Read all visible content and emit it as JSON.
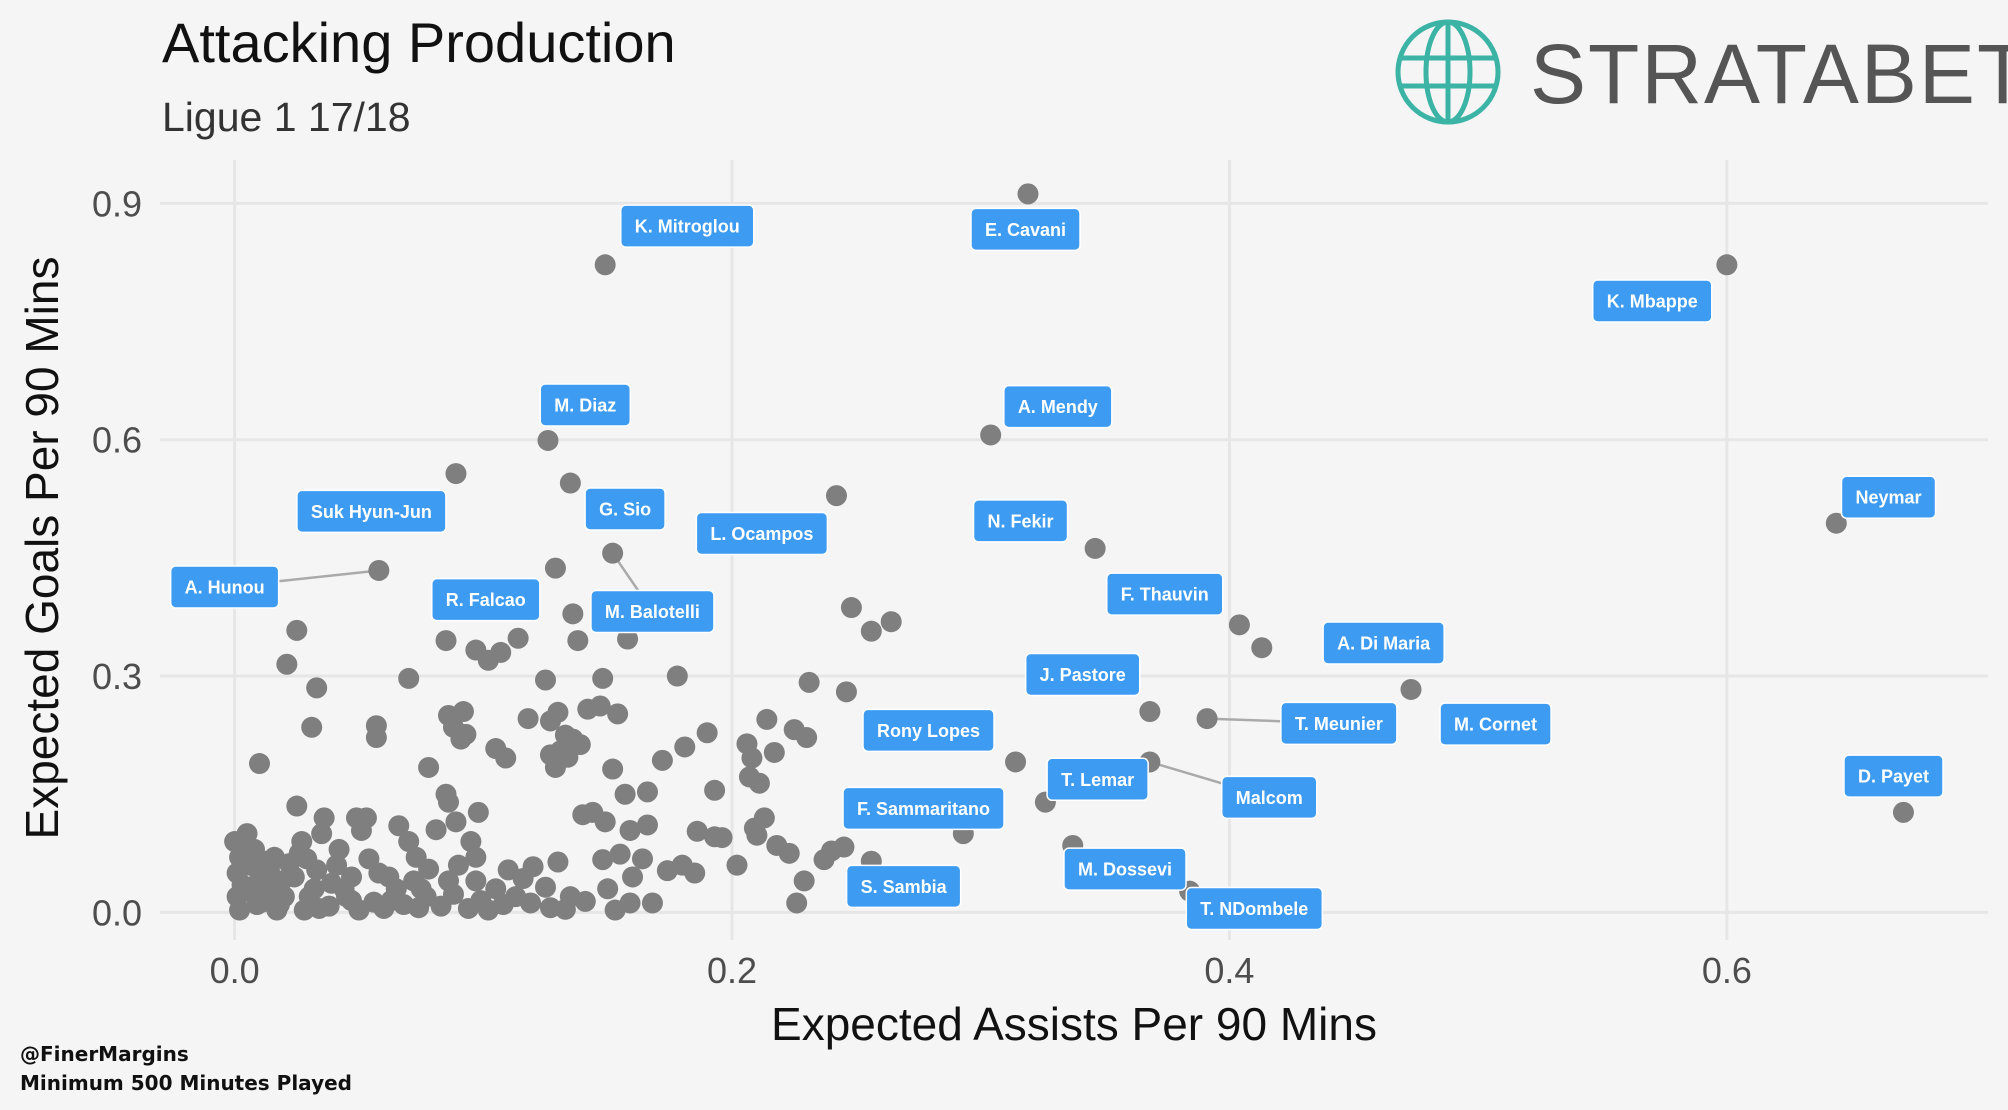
{
  "title": "Attacking Production",
  "subtitle": "Ligue 1 17/18",
  "logo": {
    "text": "STRATABET",
    "icon": "globe-icon",
    "color": "#3bb3a5"
  },
  "credit": {
    "handle": "@FinerMargins",
    "note": "Minimum 500 Minutes Played"
  },
  "colors": {
    "point": "#7f7f7f",
    "label_bg": "#3d9bf2",
    "label_text": "#ffffff",
    "grid": "#e6e6e6",
    "background": "#f5f5f5"
  },
  "chart_data": {
    "type": "scatter",
    "title": "Attacking Production",
    "subtitle": "Ligue 1 17/18",
    "xlabel": "Expected Assists Per 90 Mins",
    "ylabel": "Expected Goals Per 90 Mins",
    "xlim": [
      -0.03,
      0.705
    ],
    "ylim": [
      -0.035,
      0.955
    ],
    "xticks": [
      0.0,
      0.2,
      0.4,
      0.6
    ],
    "xtick_labels": [
      "0.0",
      "0.2",
      "0.4",
      "0.6"
    ],
    "yticks": [
      0.0,
      0.3,
      0.6,
      0.9
    ],
    "ytick_labels": [
      "0.0",
      "0.3",
      "0.6",
      "0.9"
    ],
    "grid": true,
    "labeled_points": [
      {
        "name": "E. Cavani",
        "x": 0.319,
        "y": 0.912,
        "lx": 0.318,
        "ly": 0.867
      },
      {
        "name": "K. Mitroglou",
        "x": 0.149,
        "y": 0.822,
        "lx": 0.182,
        "ly": 0.871
      },
      {
        "name": "K. Mbappe",
        "x": 0.6,
        "y": 0.822,
        "lx": 0.57,
        "ly": 0.776
      },
      {
        "name": "A. Mendy",
        "x": 0.304,
        "y": 0.606,
        "lx": 0.331,
        "ly": 0.642
      },
      {
        "name": "M. Diaz",
        "x": 0.126,
        "y": 0.599,
        "lx": 0.141,
        "ly": 0.644
      },
      {
        "name": "Neymar",
        "x": 0.644,
        "y": 0.494,
        "lx": 0.665,
        "ly": 0.527
      },
      {
        "name": "A. Hunou",
        "x": 0.058,
        "y": 0.434,
        "lx": -0.004,
        "ly": 0.413,
        "leader": true
      },
      {
        "name": "M. Balotelli",
        "x": 0.152,
        "y": 0.456,
        "lx": 0.168,
        "ly": 0.382,
        "leader": true
      },
      {
        "name": "A. Di Maria",
        "x": 0.413,
        "y": 0.336,
        "lx": 0.462,
        "ly": 0.342
      },
      {
        "name": "T. Meunier",
        "x": 0.391,
        "y": 0.246,
        "lx": 0.444,
        "ly": 0.24,
        "leader": true
      },
      {
        "name": "Malcom",
        "x": 0.368,
        "y": 0.191,
        "lx": 0.416,
        "ly": 0.146,
        "leader": true
      },
      {
        "name": "D. Payet",
        "x": 0.671,
        "y": 0.127,
        "lx": 0.667,
        "ly": 0.173
      },
      {
        "name": "T. NDombele",
        "x": 0.384,
        "y": 0.027,
        "lx": 0.41,
        "ly": 0.005
      },
      {
        "name": "Suk Hyun-Jun",
        "x": 0.09,
        "y": 0.557,
        "lx": 0.055,
        "ly": 0.509,
        "no_point": true
      },
      {
        "name": "G. Sio",
        "x": 0.135,
        "y": 0.545,
        "lx": 0.157,
        "ly": 0.512,
        "no_point": true
      },
      {
        "name": "L. Ocampos",
        "x": 0.242,
        "y": 0.529,
        "lx": 0.212,
        "ly": 0.481,
        "no_point": true
      },
      {
        "name": "N. Fekir",
        "x": 0.346,
        "y": 0.462,
        "lx": 0.316,
        "ly": 0.497,
        "no_point": true
      },
      {
        "name": "R. Falcao",
        "x": 0.129,
        "y": 0.437,
        "lx": 0.101,
        "ly": 0.397,
        "no_point": true
      },
      {
        "name": "F. Thauvin",
        "x": 0.404,
        "y": 0.365,
        "lx": 0.374,
        "ly": 0.404,
        "no_point": true
      },
      {
        "name": "J. Pastore",
        "x": 0.368,
        "y": 0.255,
        "lx": 0.341,
        "ly": 0.302,
        "no_point": true
      },
      {
        "name": "M. Cornet",
        "x": 0.473,
        "y": 0.283,
        "lx": 0.507,
        "ly": 0.239,
        "no_point": true
      },
      {
        "name": "Rony Lopes",
        "x": 0.314,
        "y": 0.191,
        "lx": 0.279,
        "ly": 0.231,
        "no_point": true
      },
      {
        "name": "T. Lemar",
        "x": 0.326,
        "y": 0.14,
        "lx": 0.347,
        "ly": 0.169,
        "no_point": true
      },
      {
        "name": "F. Sammaritano",
        "x": 0.293,
        "y": 0.1,
        "lx": 0.277,
        "ly": 0.132,
        "no_point": true
      },
      {
        "name": "M. Dossevi",
        "x": 0.337,
        "y": 0.085,
        "lx": 0.358,
        "ly": 0.055,
        "no_point": true
      },
      {
        "name": "S. Sambia",
        "x": 0.256,
        "y": 0.065,
        "lx": 0.269,
        "ly": 0.033,
        "no_point": true
      }
    ],
    "points": [
      [
        0.089,
        0.557
      ],
      [
        0.135,
        0.545
      ],
      [
        0.242,
        0.529
      ],
      [
        0.346,
        0.462
      ],
      [
        0.129,
        0.437
      ],
      [
        0.404,
        0.365
      ],
      [
        0.368,
        0.255
      ],
      [
        0.473,
        0.283
      ],
      [
        0.314,
        0.191
      ],
      [
        0.326,
        0.14
      ],
      [
        0.293,
        0.1
      ],
      [
        0.337,
        0.085
      ],
      [
        0.256,
        0.065
      ],
      [
        0.248,
        0.387
      ],
      [
        0.264,
        0.369
      ],
      [
        0.256,
        0.357
      ],
      [
        0.136,
        0.379
      ],
      [
        0.138,
        0.345
      ],
      [
        0.158,
        0.347
      ],
      [
        0.025,
        0.358
      ],
      [
        0.021,
        0.315
      ],
      [
        0.033,
        0.285
      ],
      [
        0.07,
        0.297
      ],
      [
        0.085,
        0.345
      ],
      [
        0.097,
        0.333
      ],
      [
        0.102,
        0.32
      ],
      [
        0.107,
        0.33
      ],
      [
        0.114,
        0.348
      ],
      [
        0.125,
        0.295
      ],
      [
        0.148,
        0.297
      ],
      [
        0.178,
        0.3
      ],
      [
        0.031,
        0.235
      ],
      [
        0.057,
        0.237
      ],
      [
        0.057,
        0.222
      ],
      [
        0.086,
        0.25
      ],
      [
        0.092,
        0.255
      ],
      [
        0.088,
        0.235
      ],
      [
        0.093,
        0.226
      ],
      [
        0.091,
        0.22
      ],
      [
        0.105,
        0.208
      ],
      [
        0.109,
        0.196
      ],
      [
        0.118,
        0.246
      ],
      [
        0.127,
        0.243
      ],
      [
        0.13,
        0.254
      ],
      [
        0.133,
        0.225
      ],
      [
        0.136,
        0.22
      ],
      [
        0.139,
        0.213
      ],
      [
        0.142,
        0.258
      ],
      [
        0.147,
        0.262
      ],
      [
        0.154,
        0.252
      ],
      [
        0.127,
        0.2
      ],
      [
        0.131,
        0.205
      ],
      [
        0.134,
        0.197
      ],
      [
        0.01,
        0.189
      ],
      [
        0.078,
        0.184
      ],
      [
        0.129,
        0.184
      ],
      [
        0.152,
        0.182
      ],
      [
        0.172,
        0.193
      ],
      [
        0.181,
        0.21
      ],
      [
        0.19,
        0.228
      ],
      [
        0.206,
        0.214
      ],
      [
        0.208,
        0.196
      ],
      [
        0.214,
        0.245
      ],
      [
        0.217,
        0.203
      ],
      [
        0.225,
        0.232
      ],
      [
        0.23,
        0.222
      ],
      [
        0.231,
        0.292
      ],
      [
        0.246,
        0.28
      ],
      [
        0.207,
        0.172
      ],
      [
        0.211,
        0.164
      ],
      [
        0.193,
        0.155
      ],
      [
        0.157,
        0.15
      ],
      [
        0.166,
        0.153
      ],
      [
        0.144,
        0.127
      ],
      [
        0.14,
        0.124
      ],
      [
        0.149,
        0.115
      ],
      [
        0.159,
        0.104
      ],
      [
        0.166,
        0.111
      ],
      [
        0.186,
        0.103
      ],
      [
        0.193,
        0.096
      ],
      [
        0.209,
        0.107
      ],
      [
        0.21,
        0.098
      ],
      [
        0.213,
        0.12
      ],
      [
        0.218,
        0.085
      ],
      [
        0.223,
        0.075
      ],
      [
        0.24,
        0.078
      ],
      [
        0.245,
        0.083
      ],
      [
        0.237,
        0.067
      ],
      [
        0.229,
        0.04
      ],
      [
        0.226,
        0.012
      ],
      [
        0.174,
        0.053
      ],
      [
        0.185,
        0.05
      ],
      [
        0.164,
        0.068
      ],
      [
        0.16,
        0.045
      ],
      [
        0.155,
        0.074
      ],
      [
        0.148,
        0.067
      ],
      [
        0.159,
        0.012
      ],
      [
        0.15,
        0.03
      ],
      [
        0.135,
        0.02
      ],
      [
        0.125,
        0.032
      ],
      [
        0.13,
        0.064
      ],
      [
        0.12,
        0.058
      ],
      [
        0.116,
        0.043
      ],
      [
        0.113,
        0.02
      ],
      [
        0.11,
        0.054
      ],
      [
        0.105,
        0.03
      ],
      [
        0.108,
        0.01
      ],
      [
        0.097,
        0.07
      ],
      [
        0.099,
        0.015
      ],
      [
        0.097,
        0.04
      ],
      [
        0.095,
        0.09
      ],
      [
        0.098,
        0.127
      ],
      [
        0.085,
        0.15
      ],
      [
        0.081,
        0.105
      ],
      [
        0.086,
        0.14
      ],
      [
        0.089,
        0.115
      ],
      [
        0.09,
        0.06
      ],
      [
        0.086,
        0.04
      ],
      [
        0.078,
        0.055
      ],
      [
        0.077,
        0.02
      ],
      [
        0.075,
        0.03
      ],
      [
        0.073,
        0.07
      ],
      [
        0.07,
        0.09
      ],
      [
        0.066,
        0.11
      ],
      [
        0.065,
        0.03
      ],
      [
        0.063,
        0.015
      ],
      [
        0.058,
        0.05
      ],
      [
        0.054,
        0.068
      ],
      [
        0.056,
        0.013
      ],
      [
        0.053,
        0.12
      ],
      [
        0.051,
        0.104
      ],
      [
        0.049,
        0.12
      ],
      [
        0.047,
        0.045
      ],
      [
        0.044,
        0.03
      ],
      [
        0.047,
        0.015
      ],
      [
        0.041,
        0.06
      ],
      [
        0.042,
        0.08
      ],
      [
        0.038,
        0.008
      ],
      [
        0.035,
        0.1
      ],
      [
        0.033,
        0.054
      ],
      [
        0.032,
        0.03
      ],
      [
        0.03,
        0.02
      ],
      [
        0.029,
        0.068
      ],
      [
        0.027,
        0.09
      ],
      [
        0.026,
        0.075
      ],
      [
        0.025,
        0.135
      ],
      [
        0.024,
        0.045
      ],
      [
        0.022,
        0.062
      ],
      [
        0.02,
        0.02
      ],
      [
        0.019,
        0.04
      ],
      [
        0.018,
        0.01
      ],
      [
        0.016,
        0.07
      ],
      [
        0.015,
        0.03
      ],
      [
        0.014,
        0.055
      ],
      [
        0.012,
        0.065
      ],
      [
        0.011,
        0.013
      ],
      [
        0.01,
        0.042
      ],
      [
        0.009,
        0.01
      ],
      [
        0.008,
        0.08
      ],
      [
        0.007,
        0.025
      ],
      [
        0.006,
        0.06
      ],
      [
        0.005,
        0.1
      ],
      [
        0.004,
        0.085
      ],
      [
        0.003,
        0.035
      ],
      [
        0.002,
        0.07
      ],
      [
        0.002,
        0.003
      ],
      [
        0.001,
        0.05
      ],
      [
        0.001,
        0.02
      ],
      [
        0.0,
        0.09
      ],
      [
        0.039,
        0.037
      ],
      [
        0.036,
        0.12
      ],
      [
        0.045,
        0.02
      ],
      [
        0.06,
        0.005
      ],
      [
        0.068,
        0.01
      ],
      [
        0.074,
        0.006
      ],
      [
        0.083,
        0.008
      ],
      [
        0.088,
        0.023
      ],
      [
        0.094,
        0.005
      ],
      [
        0.102,
        0.003
      ],
      [
        0.119,
        0.012
      ],
      [
        0.127,
        0.006
      ],
      [
        0.133,
        0.004
      ],
      [
        0.141,
        0.014
      ],
      [
        0.153,
        0.003
      ],
      [
        0.168,
        0.012
      ],
      [
        0.18,
        0.06
      ],
      [
        0.196,
        0.095
      ],
      [
        0.202,
        0.06
      ],
      [
        0.028,
        0.003
      ],
      [
        0.017,
        0.003
      ],
      [
        0.034,
        0.005
      ],
      [
        0.05,
        0.003
      ],
      [
        0.072,
        0.04
      ],
      [
        0.062,
        0.045
      ]
    ]
  }
}
